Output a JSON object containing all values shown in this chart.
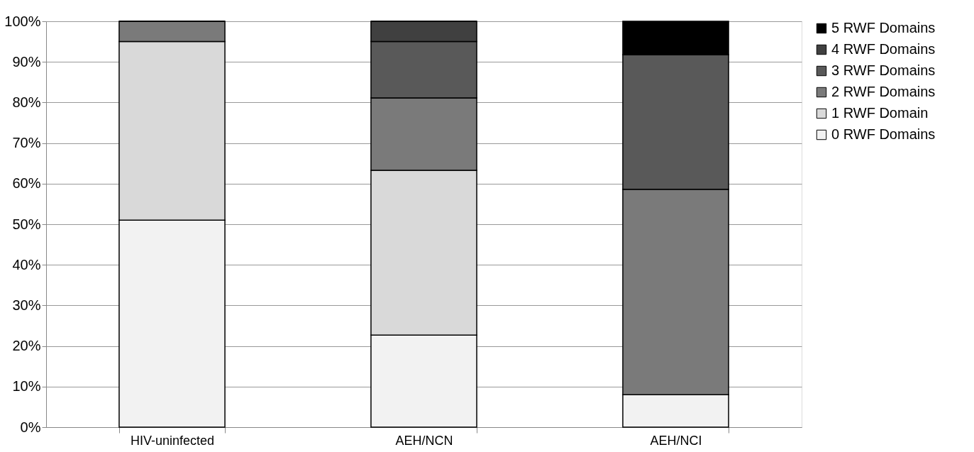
{
  "chart_data": {
    "type": "bar",
    "stacked": true,
    "categories": [
      "HIV-uninfected",
      "AEH/NCN",
      "AEH/NCI"
    ],
    "series": [
      {
        "name": "0 RWF Domains",
        "color": "#f2f2f2",
        "values": [
          51,
          22.7,
          8
        ]
      },
      {
        "name": "1 RWF Domain",
        "color": "#d9d9d9",
        "values": [
          44,
          40.6,
          0
        ]
      },
      {
        "name": "2 RWF Domains",
        "color": "#7a7a7a",
        "values": [
          5,
          17.8,
          50.6
        ]
      },
      {
        "name": "3 RWF Domains",
        "color": "#595959",
        "values": [
          0,
          13.9,
          33.2
        ]
      },
      {
        "name": "4 RWF Domains",
        "color": "#404040",
        "values": [
          0,
          5,
          0
        ]
      },
      {
        "name": "5 RWF Domains",
        "color": "#000000",
        "values": [
          0,
          0,
          8.2
        ]
      }
    ],
    "ylim": [
      0,
      100
    ],
    "yticks": [
      {
        "value": 0,
        "label": "0%"
      },
      {
        "value": 10,
        "label": "10%"
      },
      {
        "value": 20,
        "label": "20%"
      },
      {
        "value": 30,
        "label": "30%"
      },
      {
        "value": 40,
        "label": "40%"
      },
      {
        "value": 50,
        "label": "50%"
      },
      {
        "value": 60,
        "label": "60%"
      },
      {
        "value": 70,
        "label": "70%"
      },
      {
        "value": 80,
        "label": "80%"
      },
      {
        "value": 90,
        "label": "90%"
      },
      {
        "value": 100,
        "label": "100%"
      }
    ],
    "grid": "y",
    "legend": "right"
  }
}
